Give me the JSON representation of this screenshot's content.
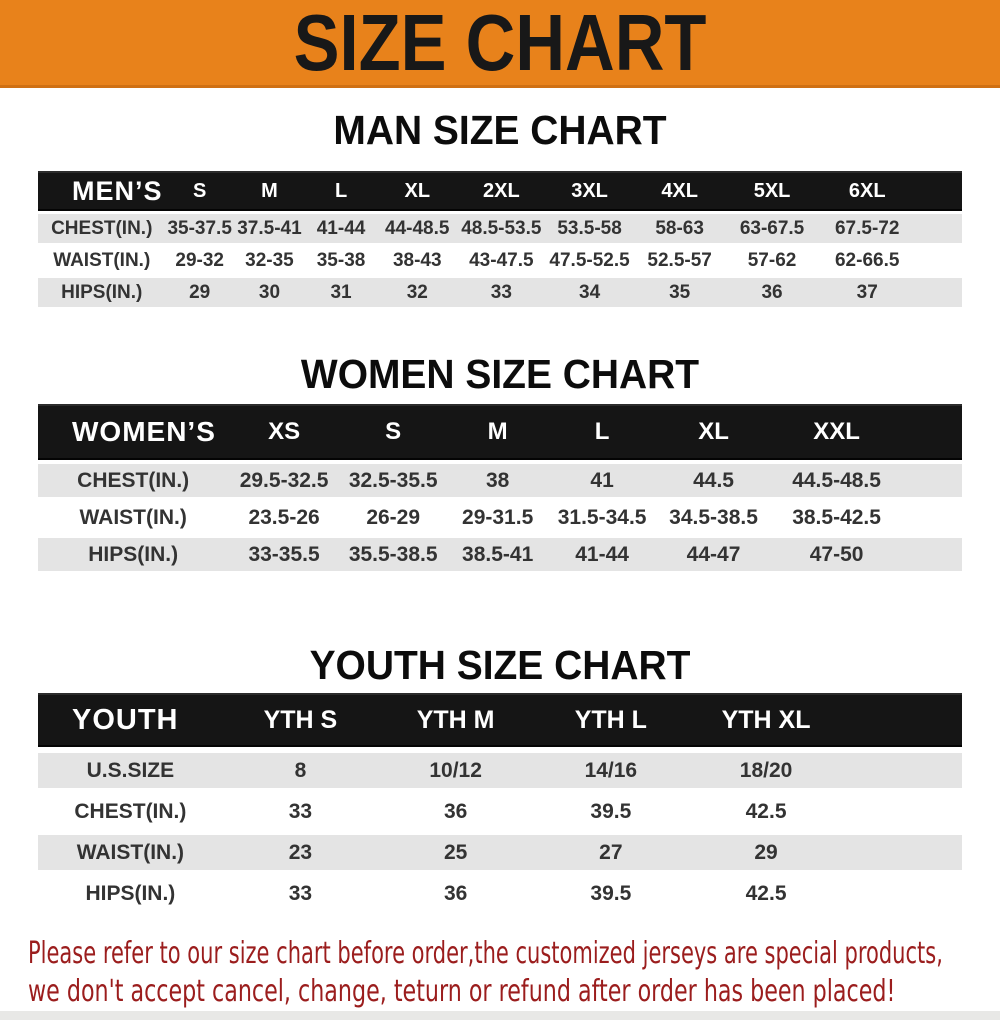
{
  "banner": {
    "title": "SIZE CHART"
  },
  "colors": {
    "banner_bg": "#E8821B",
    "header_bar": "#151515",
    "row_alt": "#E4E4E4",
    "footer_text": "#9B1D1D"
  },
  "sections": [
    {
      "id": "mens",
      "heading": "MAN SIZE CHART",
      "label": "MEN’S",
      "columns": [
        "S",
        "M",
        "L",
        "XL",
        "2XL",
        "3XL",
        "4XL",
        "5XL",
        "6XL"
      ],
      "rows": [
        {
          "label": "CHEST(IN.)",
          "values": [
            "35-37.5",
            "37.5-41",
            "41-44",
            "44-48.5",
            "48.5-53.5",
            "53.5-58",
            "58-63",
            "63-67.5",
            "67.5-72"
          ]
        },
        {
          "label": "WAIST(IN.)",
          "values": [
            "29-32",
            "32-35",
            "35-38",
            "38-43",
            "43-47.5",
            "47.5-52.5",
            "52.5-57",
            "57-62",
            "62-66.5"
          ]
        },
        {
          "label": "HIPS(IN.)",
          "values": [
            "29",
            "30",
            "31",
            "32",
            "33",
            "34",
            "35",
            "36",
            "37"
          ]
        }
      ]
    },
    {
      "id": "womens",
      "heading": "WOMEN SIZE CHART",
      "label": "WOMEN’S",
      "columns": [
        "XS",
        "S",
        "M",
        "L",
        "XL",
        "XXL"
      ],
      "rows": [
        {
          "label": "CHEST(IN.)",
          "values": [
            "29.5-32.5",
            "32.5-35.5",
            "38",
            "41",
            "44.5",
            "44.5-48.5"
          ]
        },
        {
          "label": "WAIST(IN.)",
          "values": [
            "23.5-26",
            "26-29",
            "29-31.5",
            "31.5-34.5",
            "34.5-38.5",
            "38.5-42.5"
          ]
        },
        {
          "label": "HIPS(IN.)",
          "values": [
            "33-35.5",
            "35.5-38.5",
            "38.5-41",
            "41-44",
            "44-47",
            "47-50"
          ]
        }
      ]
    },
    {
      "id": "youth",
      "heading": "YOUTH SIZE CHART",
      "label": "YOUTH",
      "columns": [
        "YTH S",
        "YTH M",
        "YTH L",
        "YTH XL"
      ],
      "rows": [
        {
          "label": "U.S.SIZE",
          "values": [
            "8",
            "10/12",
            "14/16",
            "18/20"
          ]
        },
        {
          "label": "CHEST(IN.)",
          "values": [
            "33",
            "36",
            "39.5",
            "42.5"
          ]
        },
        {
          "label": "WAIST(IN.)",
          "values": [
            "23",
            "25",
            "27",
            "29"
          ]
        },
        {
          "label": "HIPS(IN.)",
          "values": [
            "33",
            "36",
            "39.5",
            "42.5"
          ]
        }
      ]
    }
  ],
  "footer": {
    "line1": "Please refer to our size chart before order,the customized jerseys are special products,",
    "line2": "we don't accept cancel, change, teturn or refund after order has been placed!"
  }
}
